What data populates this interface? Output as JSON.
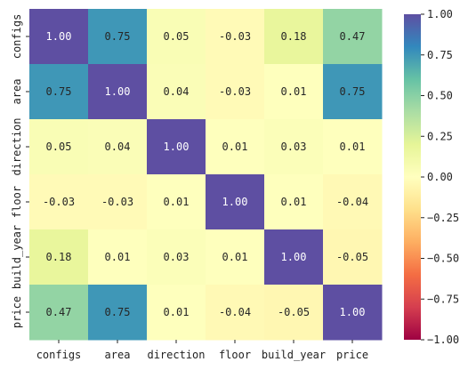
{
  "chart_data": {
    "type": "heatmap",
    "title": "",
    "xlabel": "",
    "ylabel": "",
    "rows": [
      "configs",
      "area",
      "direction",
      "floor",
      "build_year",
      "price"
    ],
    "columns": [
      "configs",
      "area",
      "direction",
      "floor",
      "build_year",
      "price"
    ],
    "values": [
      [
        1.0,
        0.75,
        0.05,
        -0.03,
        0.18,
        0.47
      ],
      [
        0.75,
        1.0,
        0.04,
        -0.03,
        0.01,
        0.75
      ],
      [
        0.05,
        0.04,
        1.0,
        0.01,
        0.03,
        0.01
      ],
      [
        -0.03,
        -0.03,
        0.01,
        1.0,
        0.01,
        -0.04
      ],
      [
        0.18,
        0.01,
        0.03,
        0.01,
        1.0,
        -0.05
      ],
      [
        0.47,
        0.75,
        0.01,
        -0.04,
        -0.05,
        1.0
      ]
    ],
    "cell_labels": [
      [
        "1.00",
        "0.75",
        "0.05",
        "-0.03",
        "0.18",
        "0.47"
      ],
      [
        "0.75",
        "1.00",
        "0.04",
        "-0.03",
        "0.01",
        "0.75"
      ],
      [
        "0.05",
        "0.04",
        "1.00",
        "0.01",
        "0.03",
        "0.01"
      ],
      [
        "-0.03",
        "-0.03",
        "0.01",
        "1.00",
        "0.01",
        "-0.04"
      ],
      [
        "0.18",
        "0.01",
        "0.03",
        "0.01",
        "1.00",
        "-0.05"
      ],
      [
        "0.47",
        "0.75",
        "0.01",
        "-0.04",
        "-0.05",
        "1.00"
      ]
    ],
    "colormap": "Spectral",
    "vmin": -1.0,
    "vmax": 1.0,
    "colorbar": {
      "ticks": [
        1.0,
        0.75,
        0.5,
        0.25,
        0.0,
        -0.25,
        -0.5,
        -0.75,
        -1.0
      ],
      "tick_labels": [
        "1.00",
        "0.75",
        "0.50",
        "0.25",
        "0.00",
        "−0.25",
        "−0.50",
        "−0.75",
        "−1.00"
      ],
      "position": "right"
    }
  }
}
